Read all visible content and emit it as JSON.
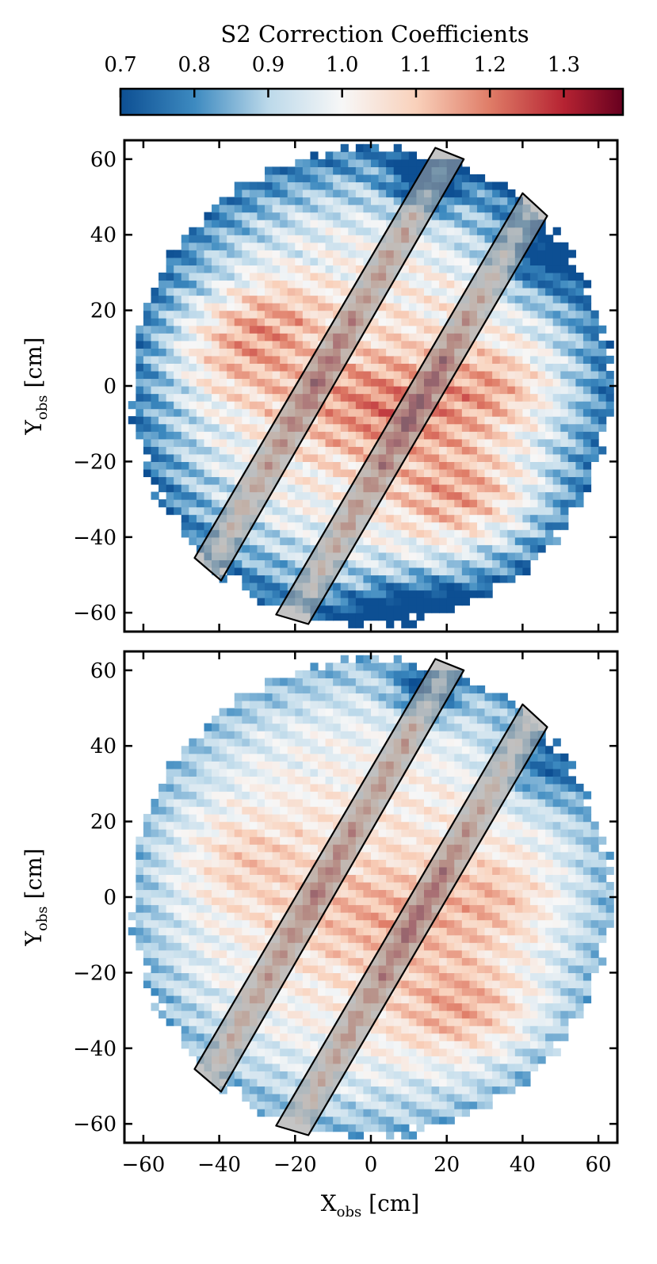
{
  "chart_data": {
    "type": "heatmap",
    "colorbar": {
      "title": "S2 Correction Coefficients",
      "range": [
        0.7,
        1.38
      ],
      "ticks": [
        0.7,
        0.8,
        0.9,
        1.0,
        1.1,
        1.2,
        1.3
      ],
      "tick_labels": [
        "0.7",
        "0.8",
        "0.9",
        "1.0",
        "1.1",
        "1.2",
        "1.3"
      ],
      "scale": "diverging, centered at 1.0",
      "colormap_stops": [
        {
          "value": 0.7,
          "color": "#0d4f93"
        },
        {
          "value": 0.8,
          "color": "#3d8ac0"
        },
        {
          "value": 0.9,
          "color": "#bcd9ea"
        },
        {
          "value": 1.0,
          "color": "#f7f7f7"
        },
        {
          "value": 1.1,
          "color": "#f9d1bb"
        },
        {
          "value": 1.2,
          "color": "#df7c67"
        },
        {
          "value": 1.3,
          "color": "#b62332"
        },
        {
          "value": 1.38,
          "color": "#67001f"
        }
      ]
    },
    "panels": [
      {
        "id": "top",
        "xlim": [
          -65,
          65
        ],
        "ylim": [
          -65,
          65
        ],
        "xticks": [
          -60,
          -40,
          -20,
          0,
          20,
          40,
          60
        ],
        "yticks": [
          -60,
          -40,
          -20,
          0,
          20,
          40,
          60
        ],
        "ytick_labels": [
          "−60",
          "−40",
          "−20",
          "0",
          "20",
          "40",
          "60"
        ],
        "show_xtick_labels": false,
        "ylabel": "Y",
        "ylabel_sub": "obs",
        "ylabel_unit": " [cm]",
        "detector_radius_cm": 64,
        "edge_value": 0.74,
        "field_features": [
          {
            "x": -35,
            "y": 10,
            "value": 1.14,
            "sx": 12,
            "sy": 9
          },
          {
            "x": 5,
            "y": -5,
            "value": 1.16,
            "sx": 18,
            "sy": 10
          },
          {
            "x": 25,
            "y": -30,
            "value": 1.16,
            "sx": 13,
            "sy": 9
          },
          {
            "x": 35,
            "y": 0,
            "value": 1.1,
            "sx": 10,
            "sy": 8
          },
          {
            "x": -25,
            "y": 20,
            "value": 1.08,
            "sx": 9,
            "sy": 6
          },
          {
            "x": 15,
            "y": 55,
            "value": 0.74,
            "sx": 6,
            "sy": 6
          },
          {
            "x": 45,
            "y": 35,
            "value": 0.82,
            "sx": 9,
            "sy": 7
          },
          {
            "x": 15,
            "y": -60,
            "value": 0.74,
            "sx": 14,
            "sy": 5
          }
        ],
        "stripe_amplitude": 0.08
      },
      {
        "id": "bottom",
        "xlim": [
          -65,
          65
        ],
        "ylim": [
          -65,
          65
        ],
        "xticks": [
          -60,
          -40,
          -20,
          0,
          20,
          40,
          60
        ],
        "xtick_labels": [
          "−60",
          "−40",
          "−20",
          "0",
          "20",
          "40",
          "60"
        ],
        "yticks": [
          -60,
          -40,
          -20,
          0,
          20,
          40,
          60
        ],
        "ytick_labels": [
          "−60",
          "−40",
          "−20",
          "0",
          "20",
          "40",
          "60"
        ],
        "show_xtick_labels": true,
        "xlabel": "X",
        "xlabel_sub": "obs",
        "xlabel_unit": " [cm]",
        "ylabel": "Y",
        "ylabel_sub": "obs",
        "ylabel_unit": " [cm]",
        "detector_radius_cm": 64,
        "edge_value": 0.84,
        "field_features": [
          {
            "x": -35,
            "y": 10,
            "value": 1.08,
            "sx": 12,
            "sy": 9
          },
          {
            "x": 5,
            "y": -5,
            "value": 1.1,
            "sx": 18,
            "sy": 10
          },
          {
            "x": 25,
            "y": -30,
            "value": 1.14,
            "sx": 13,
            "sy": 9
          },
          {
            "x": 35,
            "y": 0,
            "value": 1.08,
            "sx": 10,
            "sy": 8
          },
          {
            "x": 15,
            "y": 55,
            "value": 0.8,
            "sx": 6,
            "sy": 6
          },
          {
            "x": 45,
            "y": 35,
            "value": 0.86,
            "sx": 9,
            "sy": 7
          }
        ],
        "stripe_amplitude": 0.06
      }
    ],
    "bands": [
      {
        "name": "band-left",
        "corners": [
          [
            -46.5,
            -45.5
          ],
          [
            -39.5,
            -51.5
          ],
          [
            24.5,
            60
          ],
          [
            17,
            63
          ]
        ],
        "peak_value": 1.32
      },
      {
        "name": "band-right",
        "corners": [
          [
            -25,
            -60.5
          ],
          [
            -16.5,
            -63
          ],
          [
            46.5,
            45
          ],
          [
            40,
            51
          ]
        ],
        "peak_value": 1.32
      }
    ],
    "band_overlay": {
      "fill": "#9c9c9c",
      "opacity": 0.6,
      "edge": "#000000"
    }
  }
}
